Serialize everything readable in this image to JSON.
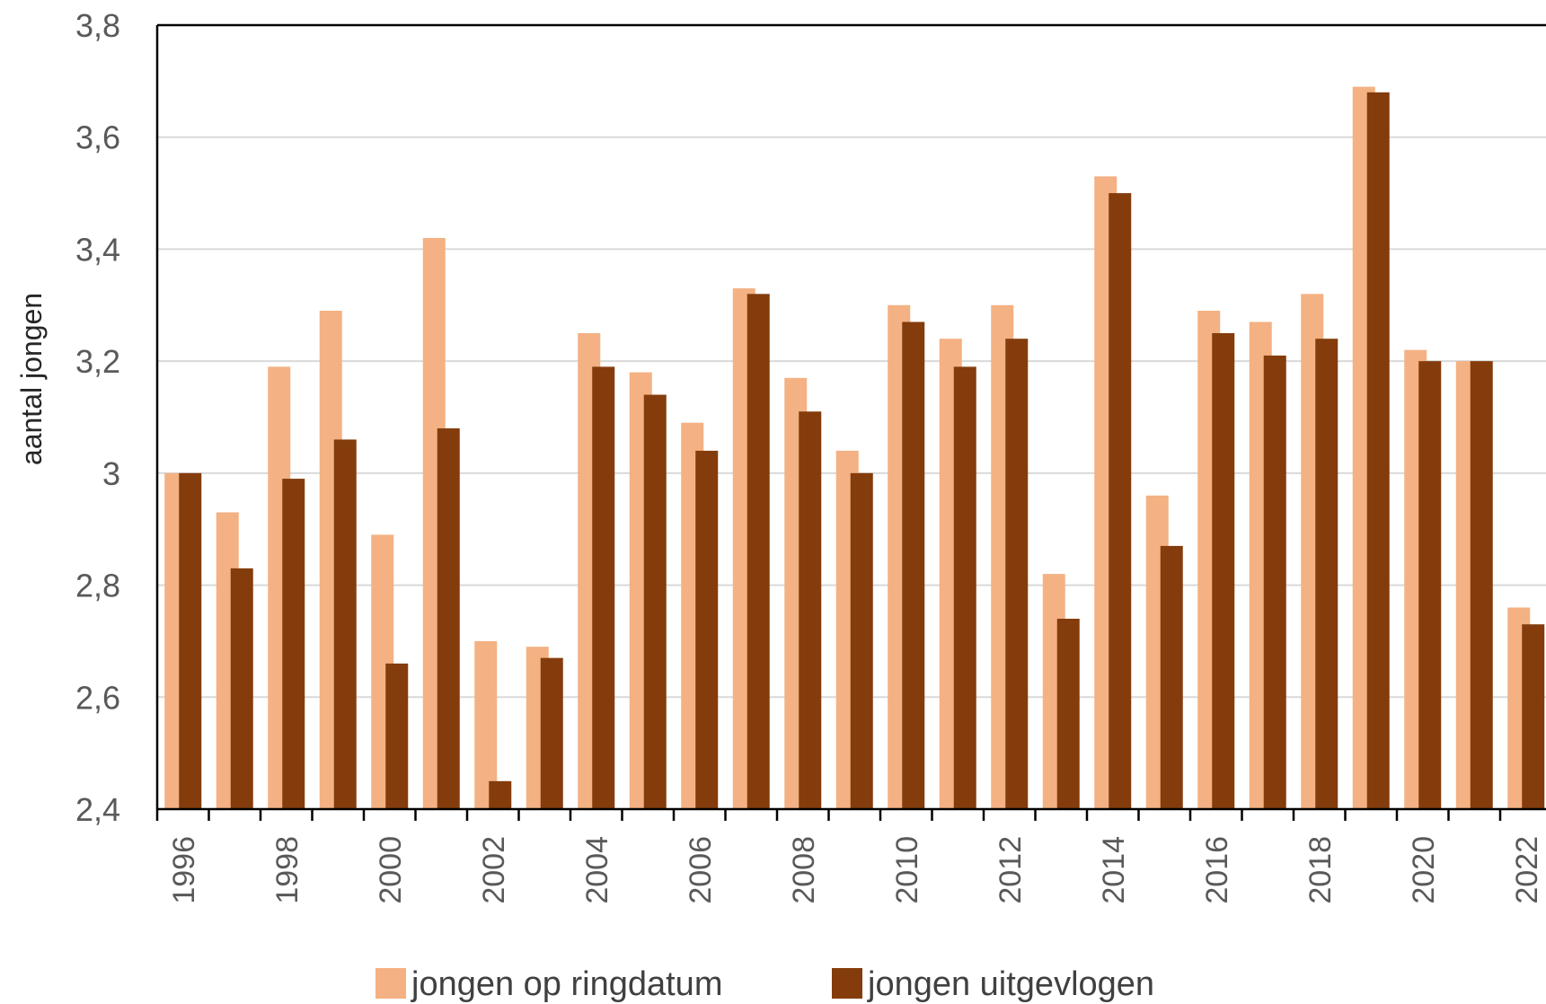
{
  "chart_data": {
    "type": "bar",
    "title": "",
    "xlabel": "",
    "ylabel": "aantal jongen",
    "ylim": [
      2.4,
      3.8
    ],
    "yticks": [
      2.4,
      2.6,
      2.8,
      3,
      3.2,
      3.4,
      3.6,
      3.8
    ],
    "ytick_labels": [
      "2,4",
      "2,6",
      "2,8",
      "3",
      "3,2",
      "3,4",
      "3,6",
      "3,8"
    ],
    "categories": [
      "1996",
      "1997",
      "1998",
      "1999",
      "2000",
      "2001",
      "2002",
      "2003",
      "2004",
      "2005",
      "2006",
      "2007",
      "2008",
      "2009",
      "2010",
      "2011",
      "2012",
      "2013",
      "2014",
      "2015",
      "2016",
      "2017",
      "2018",
      "2019",
      "2020",
      "2021",
      "2022"
    ],
    "xtick_labels": [
      "1996",
      "",
      "1998",
      "",
      "2000",
      "",
      "2002",
      "",
      "2004",
      "",
      "2006",
      "",
      "2008",
      "",
      "2010",
      "",
      "2012",
      "",
      "2014",
      "",
      "2016",
      "",
      "2018",
      "",
      "2020",
      "",
      "2022"
    ],
    "grid": true,
    "legend_position": "bottom",
    "series": [
      {
        "name": "jongen op ringdatum",
        "color": "#F4B183",
        "values": [
          3.0,
          2.93,
          3.19,
          3.29,
          2.89,
          3.42,
          2.7,
          2.69,
          3.25,
          3.18,
          3.09,
          3.33,
          3.17,
          3.04,
          3.3,
          3.24,
          3.3,
          2.82,
          3.53,
          2.96,
          3.29,
          3.27,
          3.32,
          3.69,
          3.22,
          3.2,
          2.76
        ]
      },
      {
        "name": "jongen uitgevlogen",
        "color": "#843C0C",
        "values": [
          3.0,
          2.83,
          2.99,
          3.06,
          2.66,
          3.08,
          2.45,
          2.67,
          3.19,
          3.14,
          3.04,
          3.32,
          3.11,
          3.0,
          3.27,
          3.19,
          3.24,
          2.74,
          3.5,
          2.87,
          3.25,
          3.21,
          3.24,
          3.68,
          3.2,
          3.2,
          2.73
        ]
      }
    ]
  }
}
